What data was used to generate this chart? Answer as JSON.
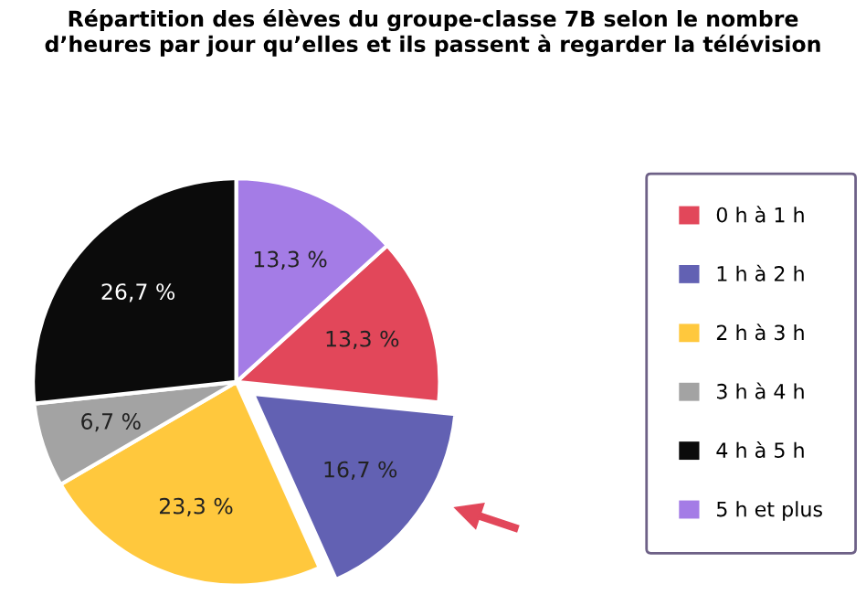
{
  "chart_data": {
    "type": "pie",
    "title": "Répartition des élèves du groupe-classe 7B selon le nombre\nd’heures par jour qu’elles et ils passent à regarder la télévision",
    "categories": [
      "0 h à 1 h",
      "1 h à 2 h",
      "2 h à 3 h",
      "3 h à 4 h",
      "4 h à 5 h",
      "5 h et plus"
    ],
    "values": [
      13.3,
      16.7,
      23.3,
      6.7,
      26.7,
      13.3
    ],
    "colors": [
      "#e2475a",
      "#6261b3",
      "#ffc83d",
      "#a3a3a3",
      "#0b0b0b",
      "#a47ce6"
    ],
    "value_labels": [
      "13,3 %",
      "16,7 %",
      "23,3 %",
      "6,7 %",
      "26,7 %",
      "13,3 %"
    ],
    "legend": "right"
  }
}
